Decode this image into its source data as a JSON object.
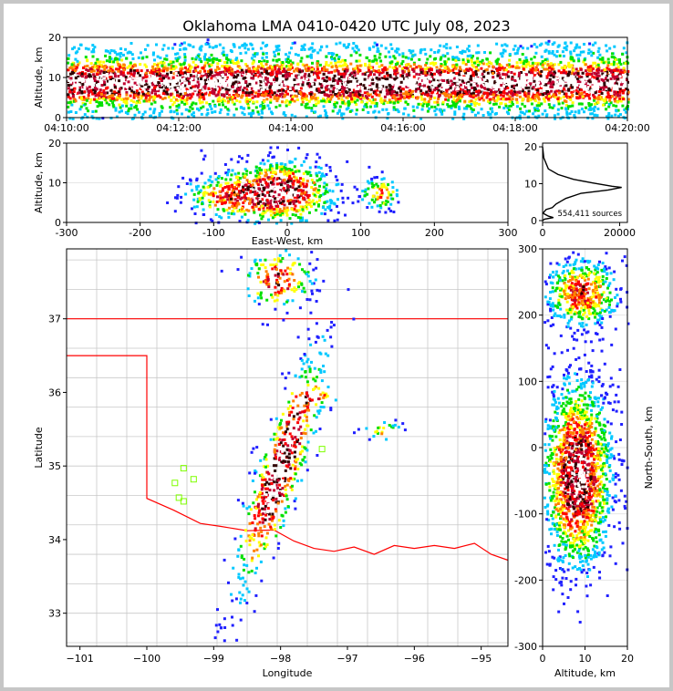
{
  "title": "Oklahoma LMA 0410-0420 UTC July 08, 2023",
  "source_count_label": "554,411 sources",
  "colors": {
    "frame": "#c6c6c6",
    "state_border": "#ff0000",
    "county_lines": "#c8c8c8",
    "stations": "#7fff00",
    "histogram": "#000000",
    "density_ramp": [
      "#2020ff",
      "#00c8ff",
      "#00e000",
      "#ffff00",
      "#ff8000",
      "#ff0000",
      "#c00030",
      "#300000",
      "#ffffff"
    ]
  },
  "chart_data": [
    {
      "type": "heatmap",
      "name": "time-height",
      "ylabel": "Altitude, km",
      "xlabel": "",
      "xticks": [
        "04:10:00",
        "04:12:00",
        "04:14:00",
        "04:16:00",
        "04:18:00",
        "04:20:00"
      ],
      "yticks": [
        0,
        10,
        20
      ],
      "xlim": [
        "04:10:00",
        "04:20:00"
      ],
      "ylim": [
        0,
        20
      ],
      "core_altitude_km": 9
    },
    {
      "type": "heatmap",
      "name": "east-west-altitude",
      "xlabel": "East-West, km",
      "ylabel": "Altitude, km",
      "xticks": [
        -300,
        -200,
        -100,
        0,
        100,
        200,
        300
      ],
      "yticks": [
        0,
        10,
        20
      ],
      "xlim": [
        -300,
        300
      ],
      "ylim": [
        0,
        20
      ],
      "grid": true
    },
    {
      "type": "line",
      "name": "altitude-histogram",
      "xlabel": "",
      "ylabel": "",
      "xticks": [
        0,
        20000
      ],
      "yticks": [
        0,
        10,
        20
      ],
      "xlim": [
        0,
        22000
      ],
      "ylim": [
        -0.5,
        21
      ],
      "series": [
        {
          "points": [
            [
              0,
              20
            ],
            [
              300,
              17
            ],
            [
              1500,
              14
            ],
            [
              4000,
              12.5
            ],
            [
              8000,
              11.2
            ],
            [
              13000,
              10.2
            ],
            [
              18000,
              9.3
            ],
            [
              20500,
              9
            ],
            [
              17000,
              8.3
            ],
            [
              10000,
              7.4
            ],
            [
              6000,
              6
            ],
            [
              3500,
              4.5
            ],
            [
              2500,
              3.5
            ],
            [
              900,
              3
            ],
            [
              100,
              2
            ],
            [
              1500,
              1.2
            ],
            [
              2800,
              0.8
            ],
            [
              500,
              0.4
            ],
            [
              0,
              0
            ]
          ]
        }
      ]
    },
    {
      "type": "heatmap",
      "name": "plan-view",
      "xlabel": "Longitude",
      "ylabel": "Latitude",
      "xticks": [
        -101,
        -100,
        -99,
        -98,
        -97,
        -96,
        -95
      ],
      "yticks": [
        33,
        34,
        35,
        36,
        37
      ],
      "xlim": [
        -101.2,
        -94.6
      ],
      "ylim": [
        32.55,
        37.95
      ]
    },
    {
      "type": "heatmap",
      "name": "altitude-north-south",
      "xlabel": "Altitude, km",
      "ylabel": "North-South, km",
      "xticks": [
        0,
        10,
        20
      ],
      "yticks": [
        -300,
        -200,
        -100,
        0,
        100,
        200,
        300
      ],
      "xlim": [
        0,
        20
      ],
      "ylim": [
        -300,
        300
      ],
      "grid": true
    }
  ]
}
